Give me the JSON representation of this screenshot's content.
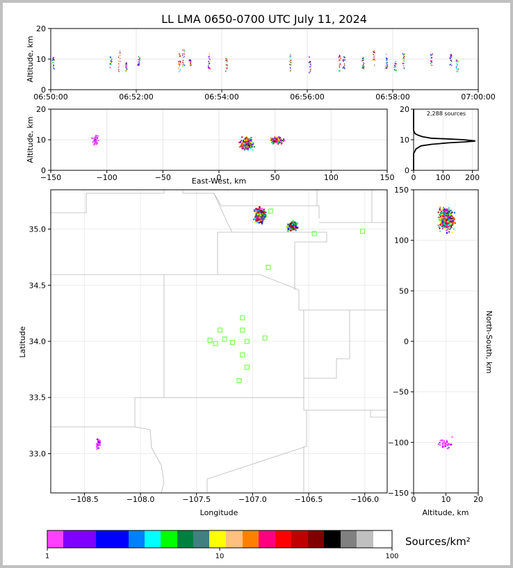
{
  "title": "LL LMA 0650-0700 UTC July 11, 2024",
  "chart_data": [
    {
      "type": "scatter",
      "panel": "altitude-time",
      "ylabel": "Altitude, km",
      "ylim": [
        0,
        20
      ],
      "yticks": [
        0,
        10,
        20
      ],
      "xlim_minutes": [
        0,
        10
      ],
      "xticks": [
        "06:50:00",
        "06:52:00",
        "06:54:00",
        "06:56:00",
        "06:58:00",
        "07:00:00"
      ],
      "clusters": [
        {
          "t": 0.05,
          "alt": [
            7,
            11
          ],
          "color": "#0000ff"
        },
        {
          "t": 1.4,
          "alt": [
            7,
            11
          ],
          "color": "#0080ff"
        },
        {
          "t": 1.6,
          "alt": [
            6,
            13
          ],
          "color": "#ffbf80"
        },
        {
          "t": 1.75,
          "alt": [
            6,
            9
          ],
          "color": "#ff00ff"
        },
        {
          "t": 2.05,
          "alt": [
            8,
            11
          ],
          "color": "#008040"
        },
        {
          "t": 3.0,
          "alt": [
            6,
            13
          ],
          "color": "#ff8000"
        },
        {
          "t": 3.1,
          "alt": [
            7,
            14
          ],
          "color": "#c00000"
        },
        {
          "t": 3.25,
          "alt": [
            8,
            10
          ],
          "color": "#ff00ff"
        },
        {
          "t": 3.7,
          "alt": [
            7,
            12
          ],
          "color": "#8000ff"
        },
        {
          "t": 4.1,
          "alt": [
            6,
            11
          ],
          "color": "#008040"
        },
        {
          "t": 5.6,
          "alt": [
            6,
            12
          ],
          "color": "#ff8000"
        },
        {
          "t": 6.05,
          "alt": [
            5,
            11
          ],
          "color": "#0000ff"
        },
        {
          "t": 6.75,
          "alt": [
            6,
            12
          ],
          "color": "#ff0000"
        },
        {
          "t": 6.85,
          "alt": [
            7,
            11
          ],
          "color": "#0000ff"
        },
        {
          "t": 7.3,
          "alt": [
            7,
            11
          ],
          "color": "#008040"
        },
        {
          "t": 7.55,
          "alt": [
            8,
            13
          ],
          "color": "#ff8000"
        },
        {
          "t": 7.85,
          "alt": [
            7,
            12
          ],
          "color": "#0000ff"
        },
        {
          "t": 8.05,
          "alt": [
            6,
            10
          ],
          "color": "#408080"
        },
        {
          "t": 8.25,
          "alt": [
            7,
            12
          ],
          "color": "#00c000"
        },
        {
          "t": 8.9,
          "alt": [
            8,
            12
          ],
          "color": "#8000ff"
        },
        {
          "t": 9.35,
          "alt": [
            8,
            12
          ],
          "color": "#0000ff"
        },
        {
          "t": 9.5,
          "alt": [
            6,
            10
          ],
          "color": "#00ffff"
        }
      ]
    },
    {
      "type": "scatter",
      "panel": "altitude-eastwest",
      "xlabel": "East-West, km",
      "ylabel": "Altitude, km",
      "xlim": [
        -150,
        150
      ],
      "ylim": [
        0,
        20
      ],
      "xticks": [
        -150,
        -100,
        -50,
        0,
        50,
        100,
        150
      ],
      "yticks": [
        0,
        10,
        20
      ],
      "clusters": [
        {
          "x": -111,
          "dx": 3,
          "alt": 10,
          "dalt": 2.5,
          "n": 40
        },
        {
          "x": 24,
          "dx": 5,
          "alt": 9,
          "dalt": 2.5,
          "n": 320
        },
        {
          "x": 51,
          "dx": 5,
          "alt": 10,
          "dalt": 1.5,
          "n": 150
        }
      ]
    },
    {
      "type": "line",
      "panel": "altitude-histogram",
      "annotation": "2,288 sources",
      "xlim": [
        0,
        220
      ],
      "ylim": [
        0,
        20
      ],
      "xticks": [
        0,
        100,
        200
      ],
      "yticks": [
        0,
        10,
        20
      ],
      "points": [
        [
          0,
          0
        ],
        [
          0,
          5.5
        ],
        [
          3,
          6
        ],
        [
          8,
          7
        ],
        [
          25,
          8
        ],
        [
          60,
          8.5
        ],
        [
          120,
          9
        ],
        [
          175,
          9.3
        ],
        [
          210,
          9.6
        ],
        [
          170,
          10
        ],
        [
          110,
          10.3
        ],
        [
          60,
          10.5
        ],
        [
          30,
          11
        ],
        [
          15,
          11.5
        ],
        [
          5,
          12
        ],
        [
          0,
          13
        ],
        [
          0,
          20
        ]
      ]
    },
    {
      "type": "scatter",
      "panel": "plan-view",
      "xlabel": "Longitude",
      "ylabel": "Latitude",
      "xlim": [
        -108.8,
        -105.8
      ],
      "ylim": [
        32.65,
        35.35
      ],
      "xticks": [
        "−108.5",
        "−108.0",
        "−107.5",
        "−107.0",
        "−106.5",
        "−106.0"
      ],
      "yticks": [
        "33.0",
        "33.5",
        "34.0",
        "34.5",
        "35.0"
      ],
      "stations": [
        [
          -106.84,
          35.16
        ],
        [
          -106.45,
          34.96
        ],
        [
          -106.02,
          34.98
        ],
        [
          -106.86,
          34.66
        ],
        [
          -107.09,
          34.21
        ],
        [
          -107.29,
          34.1
        ],
        [
          -107.09,
          34.1
        ],
        [
          -107.38,
          34.01
        ],
        [
          -107.33,
          33.98
        ],
        [
          -107.25,
          34.02
        ],
        [
          -107.18,
          33.99
        ],
        [
          -107.05,
          34.0
        ],
        [
          -106.89,
          34.03
        ],
        [
          -107.09,
          33.88
        ],
        [
          -107.05,
          33.77
        ],
        [
          -107.12,
          33.65
        ]
      ],
      "clusters": [
        {
          "lon": -106.94,
          "dlon": 0.05,
          "lat": 35.13,
          "dlat": 0.07,
          "n": 320
        },
        {
          "lon": -106.65,
          "dlon": 0.05,
          "lat": 35.03,
          "dlat": 0.04,
          "n": 150
        },
        {
          "lon": -108.38,
          "dlon": 0.02,
          "lat": 33.1,
          "dlat": 0.06,
          "n": 40
        }
      ]
    },
    {
      "type": "scatter",
      "panel": "northsouth-altitude",
      "xlabel": "Altitude, km",
      "ylabel": "North-South, km",
      "xlim": [
        0,
        20
      ],
      "ylim": [
        -150,
        150
      ],
      "xticks": [
        0,
        10,
        20
      ],
      "yticks": [
        -150,
        -100,
        -50,
        0,
        50,
        100,
        150
      ],
      "clusters": [
        {
          "alt": 10,
          "dalt": 3,
          "y": 122,
          "dy": 12,
          "n": 420
        },
        {
          "alt": 10,
          "dalt": 3,
          "y": -100,
          "dy": 6,
          "n": 40
        }
      ]
    }
  ],
  "colorbar": {
    "label": "Sources/km²",
    "ticks": [
      "1",
      "10",
      "100"
    ],
    "colors": [
      "#ff40ff",
      "#8000ff",
      "#0000ff",
      "#0080ff",
      "#00ffff",
      "#00ff00",
      "#008040",
      "#408080",
      "#ffff00",
      "#ffbf80",
      "#ff8000",
      "#ff0080",
      "#ff0000",
      "#c00000",
      "#800000",
      "#000000",
      "#808080",
      "#c0c0c0",
      "#ffffff"
    ],
    "widths": [
      23,
      47,
      47,
      23,
      23,
      24,
      23,
      23,
      24,
      24,
      23,
      24,
      23,
      24,
      23,
      24,
      23,
      24,
      24
    ]
  }
}
